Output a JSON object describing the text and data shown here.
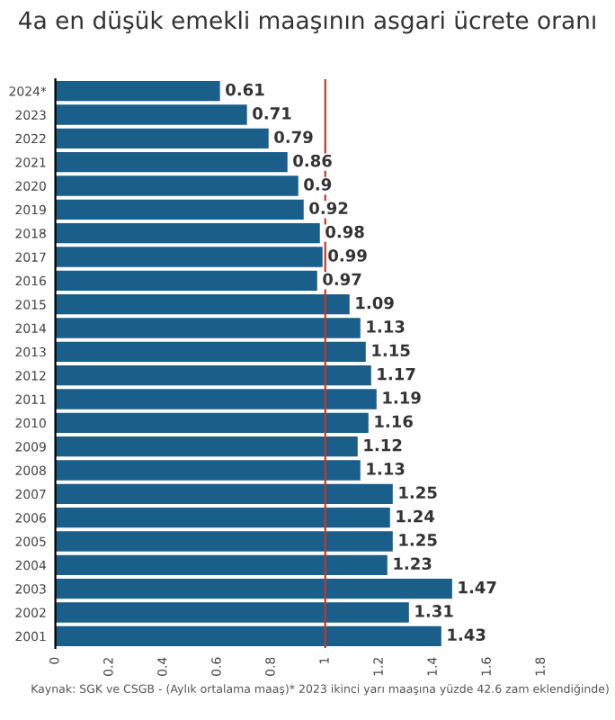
{
  "chart_data": {
    "type": "bar",
    "orientation": "horizontal",
    "title": "4a en düşük emekli maaşının asgari ücrete oranı",
    "categories": [
      "2024*",
      "2023",
      "2022",
      "2021",
      "2020",
      "2019",
      "2018",
      "2017",
      "2016",
      "2015",
      "2014",
      "2013",
      "2012",
      "2011",
      "2010",
      "2009",
      "2008",
      "2007",
      "2006",
      "2005",
      "2004",
      "2003",
      "2002",
      "2001"
    ],
    "values": [
      0.61,
      0.71,
      0.79,
      0.86,
      0.9,
      0.92,
      0.98,
      0.99,
      0.97,
      1.09,
      1.13,
      1.15,
      1.17,
      1.19,
      1.16,
      1.12,
      1.13,
      1.25,
      1.24,
      1.25,
      1.23,
      1.47,
      1.31,
      1.43
    ],
    "color": "#1a5e8a",
    "data_labels": true,
    "xlim": [
      0,
      1.8
    ],
    "xticks": [
      0,
      0.2,
      0.4,
      0.6,
      0.8,
      1,
      1.2,
      1.4,
      1.6,
      1.8
    ],
    "ref_lines": [
      {
        "axis": "x",
        "value": 1,
        "label": null,
        "color": "#c0392b"
      }
    ],
    "annotations": [
      "Kaynak: SGK ve CSGB - (Aylık ortalama maaş)* 2023 ikinci yarı maaşına yüzde 42.6 zam eklendiğinde)"
    ]
  }
}
